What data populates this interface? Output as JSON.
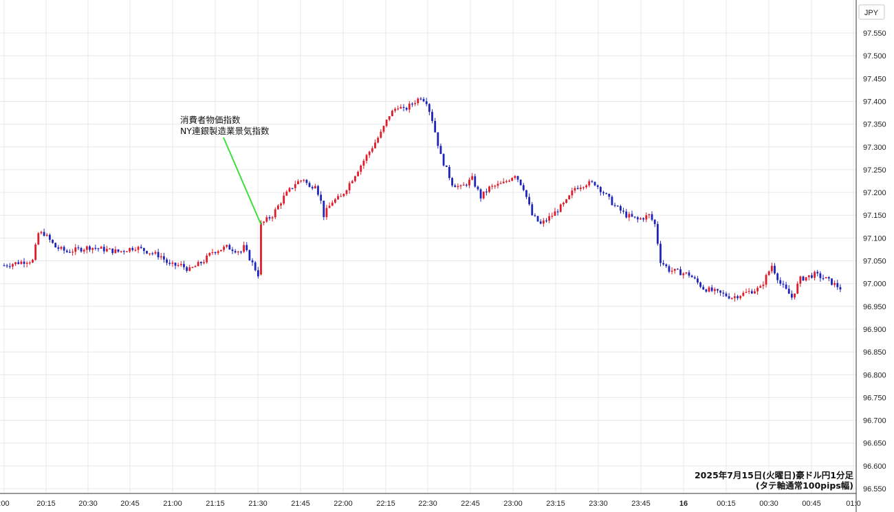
{
  "currency_label": "JPY",
  "annotation": {
    "line1": "消費者物価指数",
    "line2": "NY連銀製造業景気指数"
  },
  "footer": {
    "line1": "2025年7月15日(火曜日)豪ドル円1分足",
    "line2": "(タテ軸通常100pips幅)"
  },
  "colors": {
    "up": "#e01b2a",
    "down": "#1f24b8",
    "arrow": "#39e039"
  },
  "chart_data": {
    "type": "candlestick",
    "interval": "1 minute",
    "ylim": [
      96.55,
      97.55
    ],
    "y_ticks": [
      "97.550",
      "97.500",
      "97.450",
      "97.400",
      "97.350",
      "97.300",
      "97.250",
      "97.200",
      "97.150",
      "97.100",
      "97.050",
      "97.000",
      "96.950",
      "96.900",
      "96.850",
      "96.800",
      "96.750",
      "96.700",
      "96.650",
      "96.600",
      "96.550"
    ],
    "x_ticks": [
      ":00",
      "20:15",
      "20:30",
      "20:45",
      "21:00",
      "21:15",
      "21:30",
      "21:45",
      "22:00",
      "22:15",
      "22:30",
      "22:45",
      "23:00",
      "23:15",
      "23:30",
      "23:45",
      "16",
      "00:15",
      "00:30",
      "00:45",
      "01:0"
    ],
    "annotation_time": "21:30",
    "anchor_prices": [
      [
        "20:00",
        97.04
      ],
      [
        "20:08",
        97.05
      ],
      [
        "20:10",
        97.05
      ],
      [
        "20:12",
        97.11
      ],
      [
        "20:14",
        97.11
      ],
      [
        "20:18",
        97.08
      ],
      [
        "20:22",
        97.07
      ],
      [
        "20:30",
        97.08
      ],
      [
        "20:40",
        97.07
      ],
      [
        "20:46",
        97.08
      ],
      [
        "20:55",
        97.06
      ],
      [
        "20:58",
        97.04
      ],
      [
        "21:02",
        97.04
      ],
      [
        "21:05",
        97.03
      ],
      [
        "21:10",
        97.05
      ],
      [
        "21:13",
        97.07
      ],
      [
        "21:18",
        97.08
      ],
      [
        "21:23",
        97.07
      ],
      [
        "21:24",
        97.08
      ],
      [
        "21:29",
        97.02
      ],
      [
        "21:30",
        97.13
      ],
      [
        "21:34",
        97.15
      ],
      [
        "21:38",
        97.19
      ],
      [
        "21:42",
        97.22
      ],
      [
        "21:45",
        97.23
      ],
      [
        "21:47",
        97.21
      ],
      [
        "21:49",
        97.22
      ],
      [
        "21:51",
        97.18
      ],
      [
        "21:52",
        97.15
      ],
      [
        "21:55",
        97.18
      ],
      [
        "21:58",
        97.19
      ],
      [
        "22:00",
        97.21
      ],
      [
        "22:05",
        97.26
      ],
      [
        "22:08",
        97.29
      ],
      [
        "22:12",
        97.33
      ],
      [
        "22:15",
        97.37
      ],
      [
        "22:18",
        97.39
      ],
      [
        "22:20",
        97.38
      ],
      [
        "22:24",
        97.4
      ],
      [
        "22:26",
        97.41
      ],
      [
        "22:28",
        97.4
      ],
      [
        "22:30",
        97.36
      ],
      [
        "22:33",
        97.28
      ],
      [
        "22:37",
        97.22
      ],
      [
        "22:40",
        97.21
      ],
      [
        "22:44",
        97.23
      ],
      [
        "22:47",
        97.19
      ],
      [
        "22:50",
        97.21
      ],
      [
        "22:55",
        97.22
      ],
      [
        "22:59",
        97.24
      ],
      [
        "23:02",
        97.21
      ],
      [
        "23:05",
        97.15
      ],
      [
        "23:08",
        97.13
      ],
      [
        "23:12",
        97.15
      ],
      [
        "23:17",
        97.18
      ],
      [
        "23:20",
        97.21
      ],
      [
        "23:24",
        97.22
      ],
      [
        "23:27",
        97.22
      ],
      [
        "23:30",
        97.2
      ],
      [
        "23:34",
        97.17
      ],
      [
        "23:38",
        97.15
      ],
      [
        "23:42",
        97.14
      ],
      [
        "23:46",
        97.15
      ],
      [
        "23:48",
        97.13
      ],
      [
        "23:50",
        97.05
      ],
      [
        "23:53",
        97.03
      ],
      [
        "00:00",
        97.02
      ],
      [
        "00:05",
        96.99
      ],
      [
        "00:10",
        96.98
      ],
      [
        "00:15",
        96.97
      ],
      [
        "00:20",
        96.98
      ],
      [
        "00:25",
        96.99
      ],
      [
        "00:29",
        97.04
      ],
      [
        "00:32",
        97.0
      ],
      [
        "00:36",
        96.97
      ],
      [
        "00:39",
        97.01
      ],
      [
        "00:44",
        97.02
      ],
      [
        "00:48",
        97.01
      ],
      [
        "00:53",
        96.99
      ]
    ]
  }
}
